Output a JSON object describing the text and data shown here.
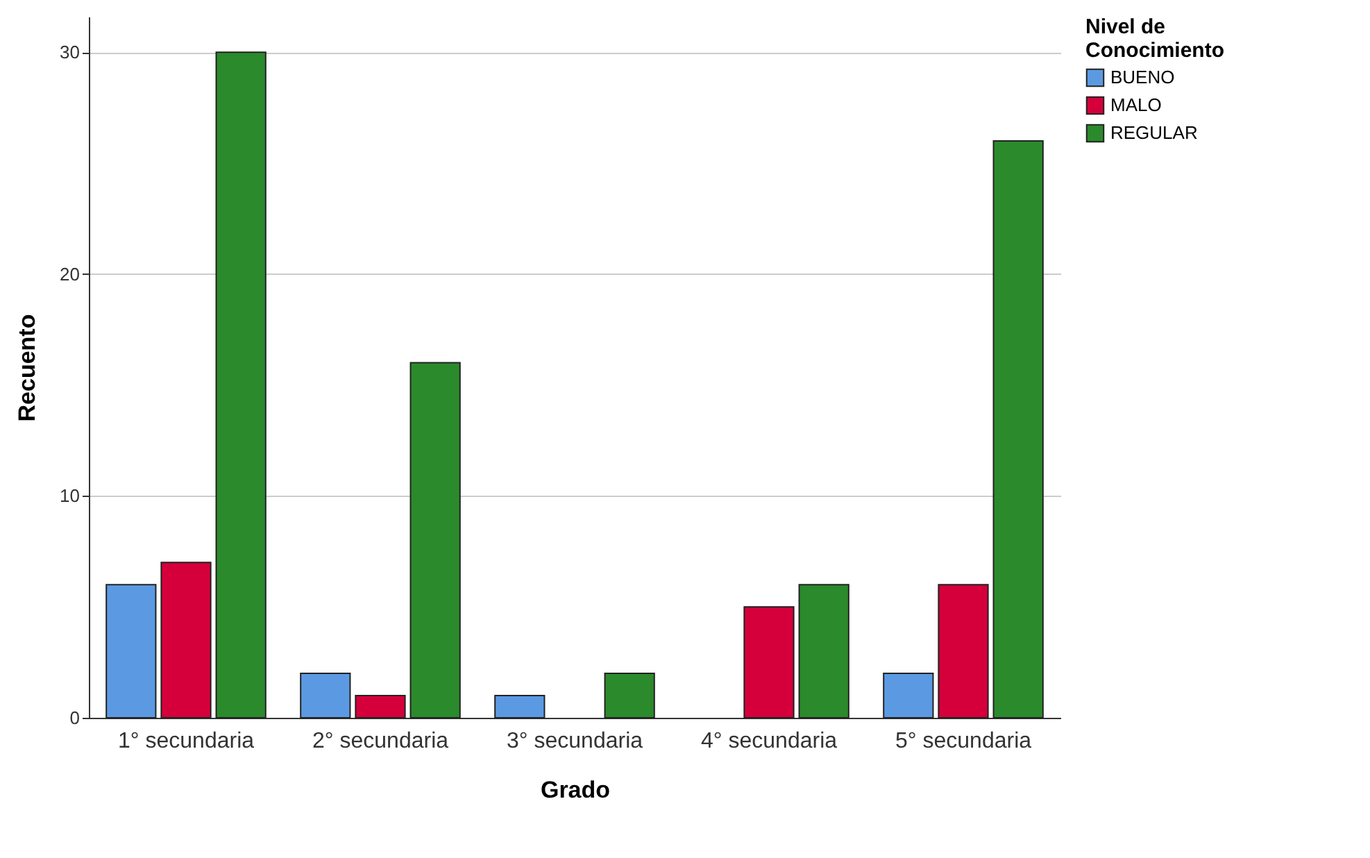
{
  "chart_data": {
    "type": "bar",
    "xlabel": "Grado",
    "ylabel": "Recuento",
    "legend_title": "Nivel de Conocimiento",
    "categories": [
      "1° secundaria",
      "2° secundaria",
      "3° secundaria",
      "4° secundaria",
      "5° secundaria"
    ],
    "series": [
      {
        "name": "BUENO",
        "color": "#5b9ae3",
        "values": [
          6,
          2,
          1,
          null,
          2
        ]
      },
      {
        "name": "MALO",
        "color": "#d5003b",
        "values": [
          7,
          1,
          null,
          5,
          6
        ]
      },
      {
        "name": "REGULAR",
        "color": "#2b8a2b",
        "values": [
          30,
          16,
          2,
          6,
          26
        ]
      }
    ],
    "ylim": [
      0,
      31.6
    ],
    "yticks": [
      0,
      10,
      20,
      30
    ],
    "grid": "y",
    "legend": "top right"
  }
}
